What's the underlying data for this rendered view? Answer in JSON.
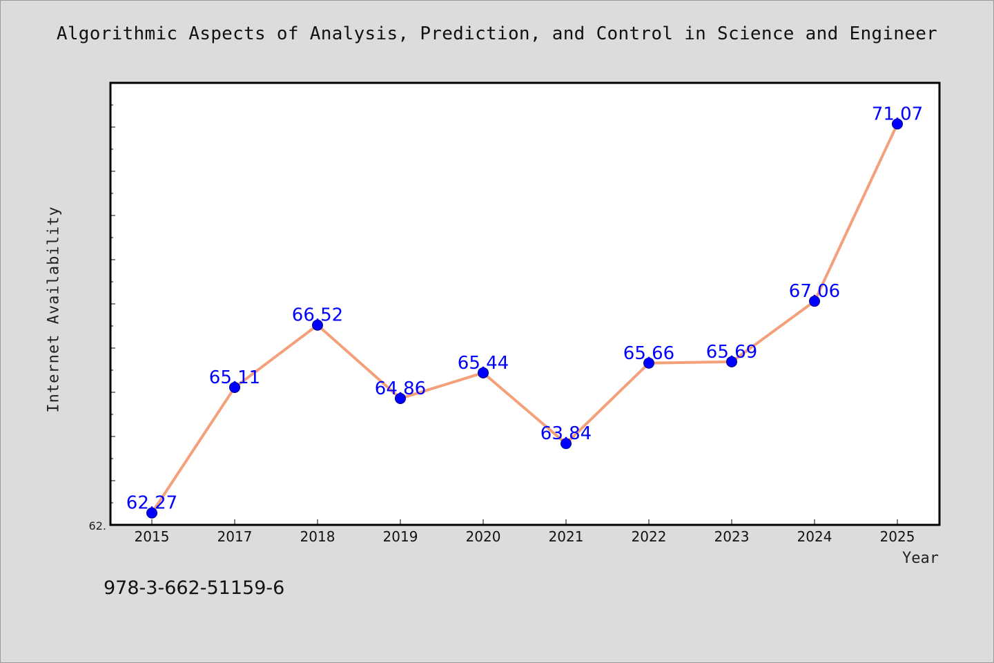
{
  "chart_data": {
    "type": "line",
    "title": "Algorithmic Aspects of Analysis, Prediction, and Control in Science and Engineer",
    "xlabel": "Year",
    "ylabel": "Internet Availability",
    "categories": [
      "2015",
      "2017",
      "2018",
      "2019",
      "2020",
      "2021",
      "2022",
      "2023",
      "2024",
      "2025"
    ],
    "series": [
      {
        "values": [
          62.27,
          65.11,
          66.52,
          64.86,
          65.44,
          63.84,
          65.66,
          65.69,
          67.06,
          71.07
        ]
      }
    ],
    "data_labels": [
      "62.27",
      "65.11",
      "66.52",
      "64.86",
      "65.44",
      "63.84",
      "65.66",
      "65.69",
      "67.06",
      "71.07"
    ],
    "y_tick_label": "62.",
    "ylim": [
      62.0,
      72.0
    ],
    "grid": false,
    "line_color": "#f4a07a",
    "marker_color": "#0000ff",
    "label_color": "#0000ff"
  },
  "footer": {
    "isbn": "978-3-662-51159-6"
  }
}
